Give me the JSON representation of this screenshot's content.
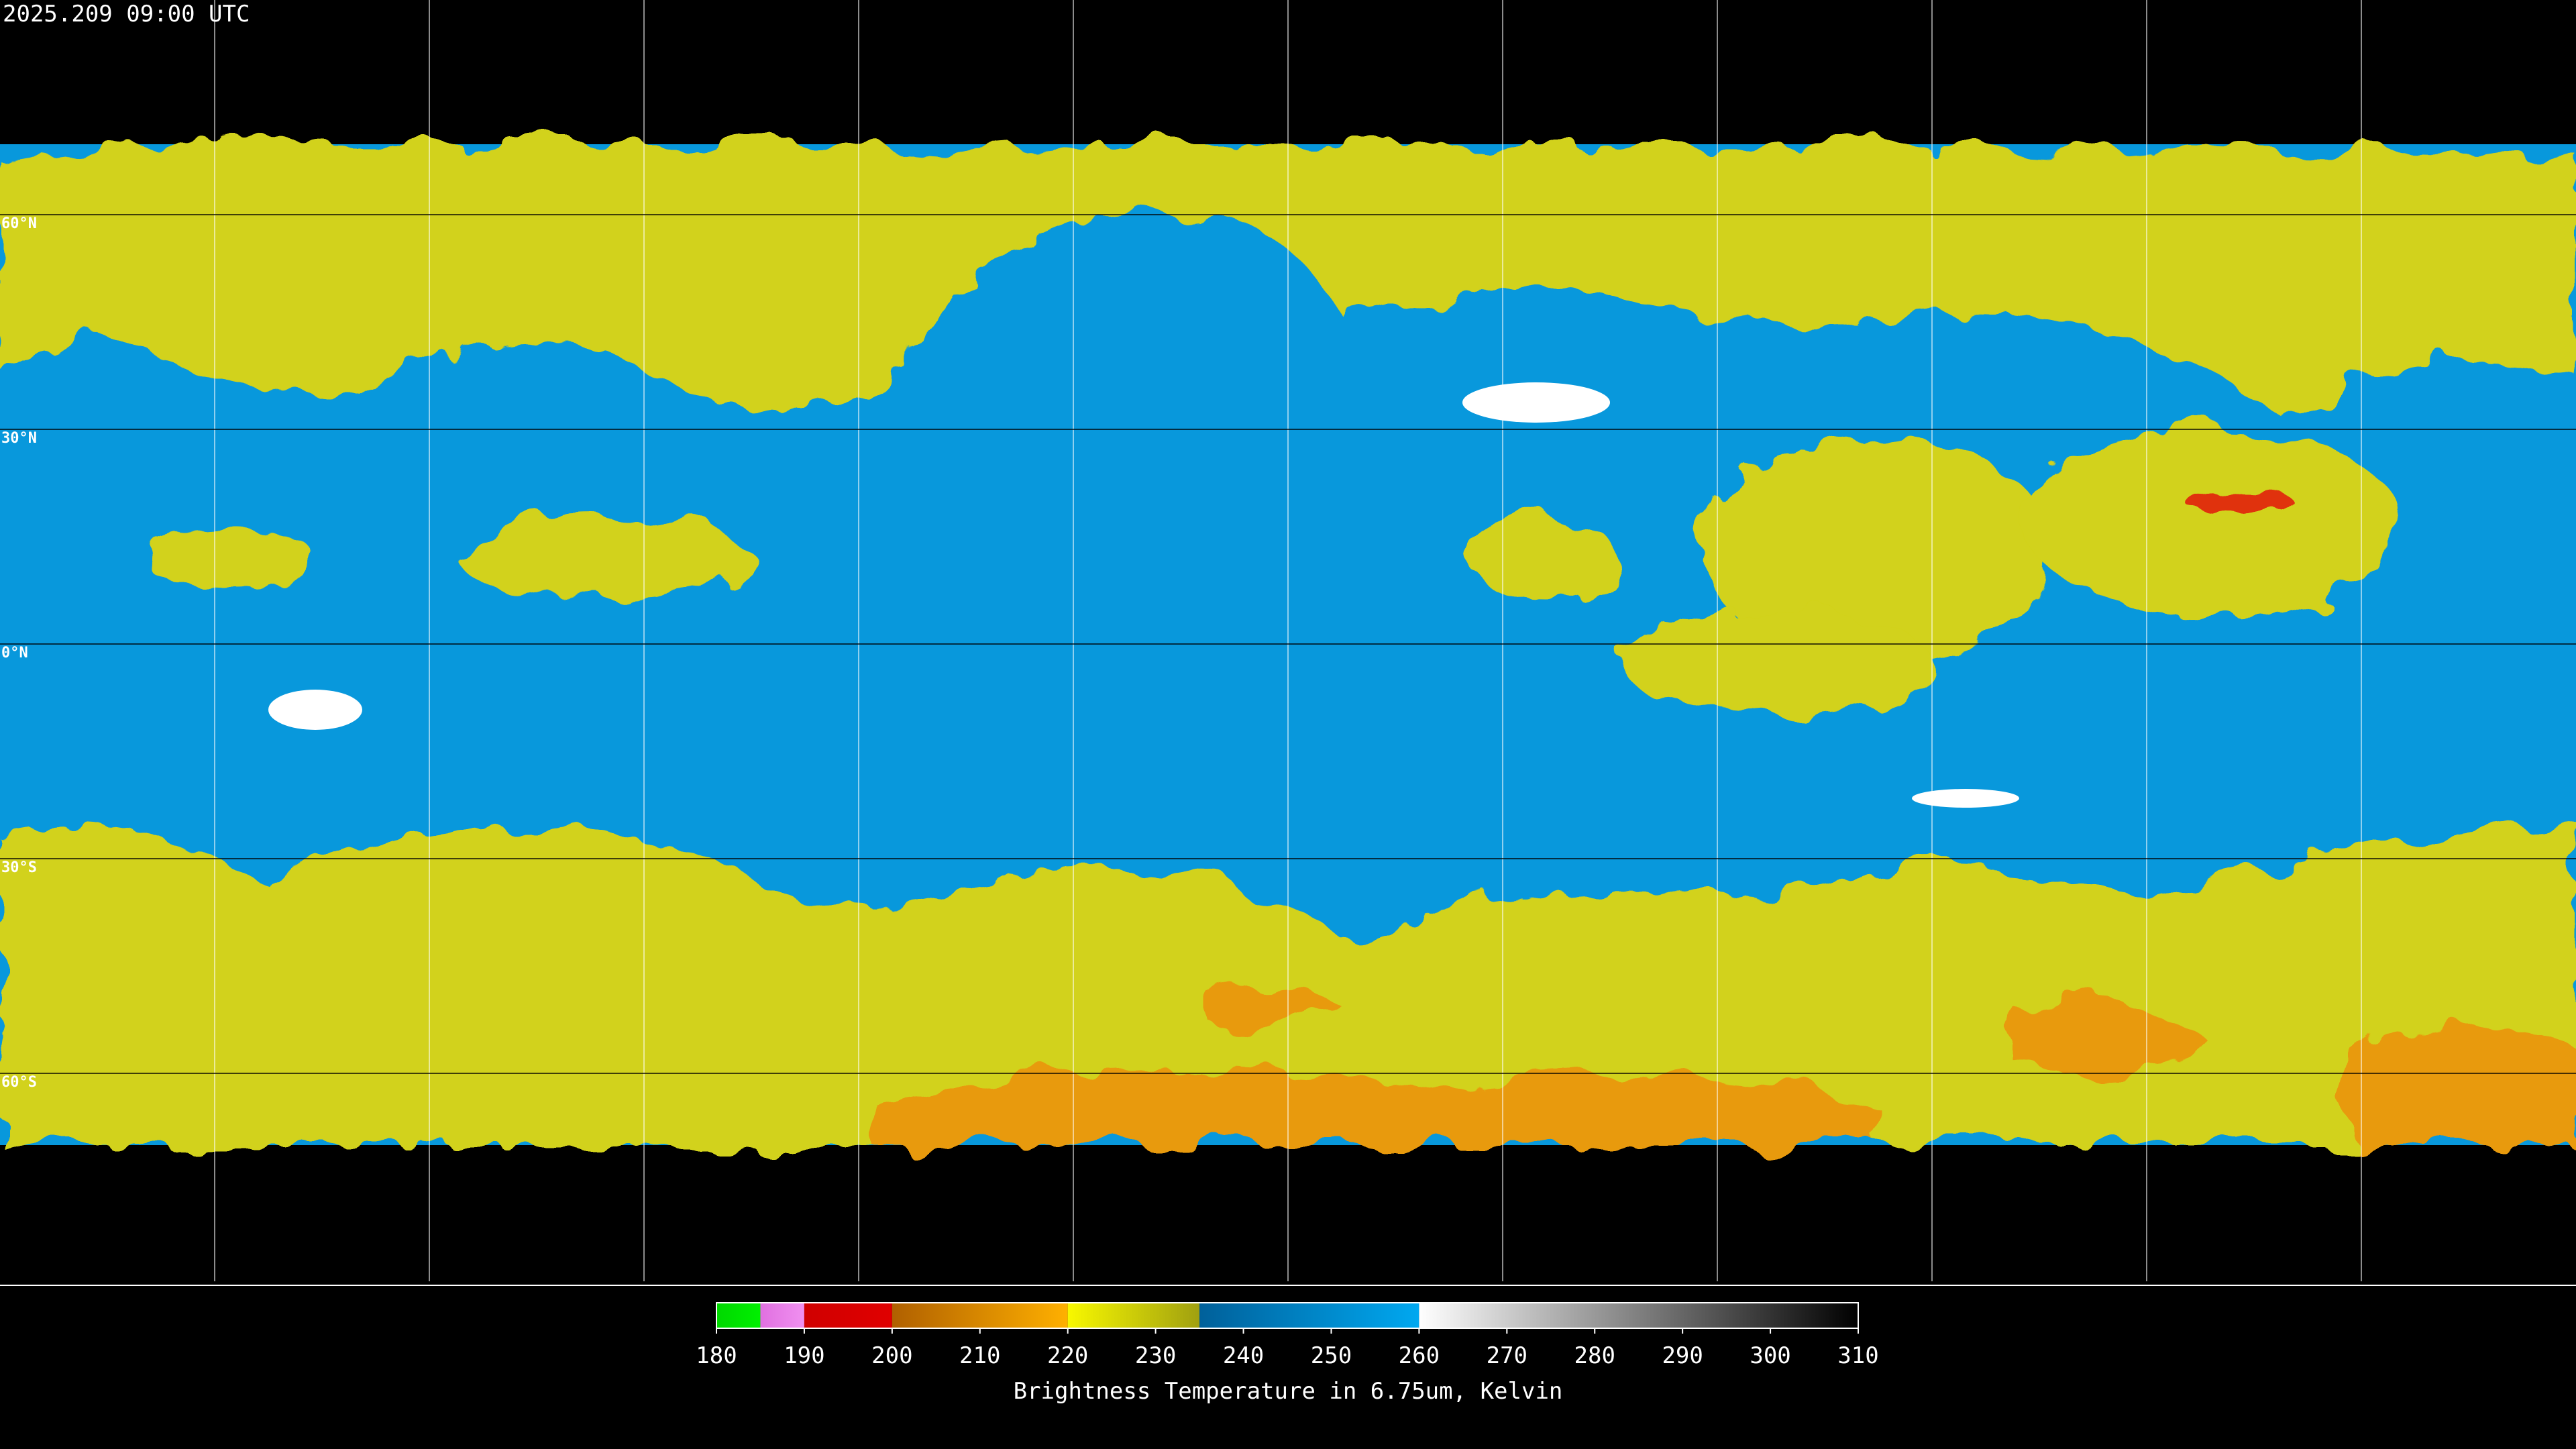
{
  "header": {
    "timestamp": "2025.209 09:00 UTC"
  },
  "grid": {
    "lat_labels": [
      "60°N",
      "30°N",
      "0°N",
      "30°S",
      "60°S"
    ]
  },
  "colorbar": {
    "range": [
      180,
      310
    ],
    "ticks": [
      180,
      190,
      200,
      210,
      220,
      230,
      240,
      250,
      260,
      270,
      280,
      290,
      300,
      310
    ],
    "stops": [
      {
        "from": 180,
        "to": 185,
        "colors": [
          "#00d800",
          "#00f000"
        ]
      },
      {
        "from": 185,
        "to": 190,
        "colors": [
          "#e070e0",
          "#f090f0"
        ]
      },
      {
        "from": 190,
        "to": 200,
        "colors": [
          "#d00000",
          "#e00000"
        ]
      },
      {
        "from": 200,
        "to": 220,
        "colors": [
          "#b06000",
          "#ffb000"
        ]
      },
      {
        "from": 220,
        "to": 235,
        "colors": [
          "#f8f800",
          "#a0a010"
        ]
      },
      {
        "from": 235,
        "to": 260,
        "colors": [
          "#00609a",
          "#00a8f0"
        ]
      },
      {
        "from": 260,
        "to": 310,
        "colors": [
          "#ffffff",
          "#000000"
        ]
      }
    ],
    "label": "Brightness Temperature in 6.75um, Kelvin"
  }
}
